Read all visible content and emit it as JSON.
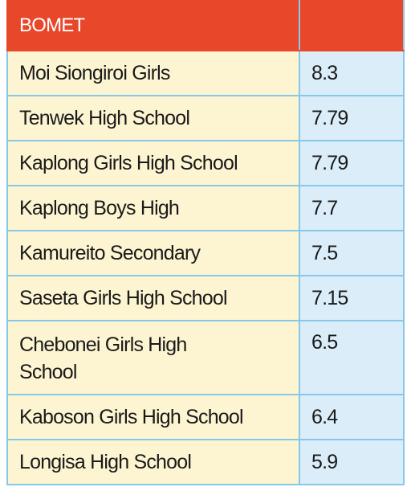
{
  "table": {
    "title": "BOMET",
    "rows": [
      [
        "Moi Siongiroi Girls",
        "8.3"
      ],
      [
        "Tenwek High School",
        "7.79"
      ],
      [
        "Kaplong Girls High School",
        "7.79"
      ],
      [
        "Kaplong Boys High",
        "7.7"
      ],
      [
        "Kamureito Secondary",
        "7.5"
      ],
      [
        "Saseta Girls High School",
        "7.15"
      ],
      [
        "Chebonei Girls High School",
        "6.5"
      ],
      [
        "Kaboson Girls High School",
        "6.4"
      ],
      [
        "Longisa High School",
        "5.9"
      ]
    ]
  }
}
